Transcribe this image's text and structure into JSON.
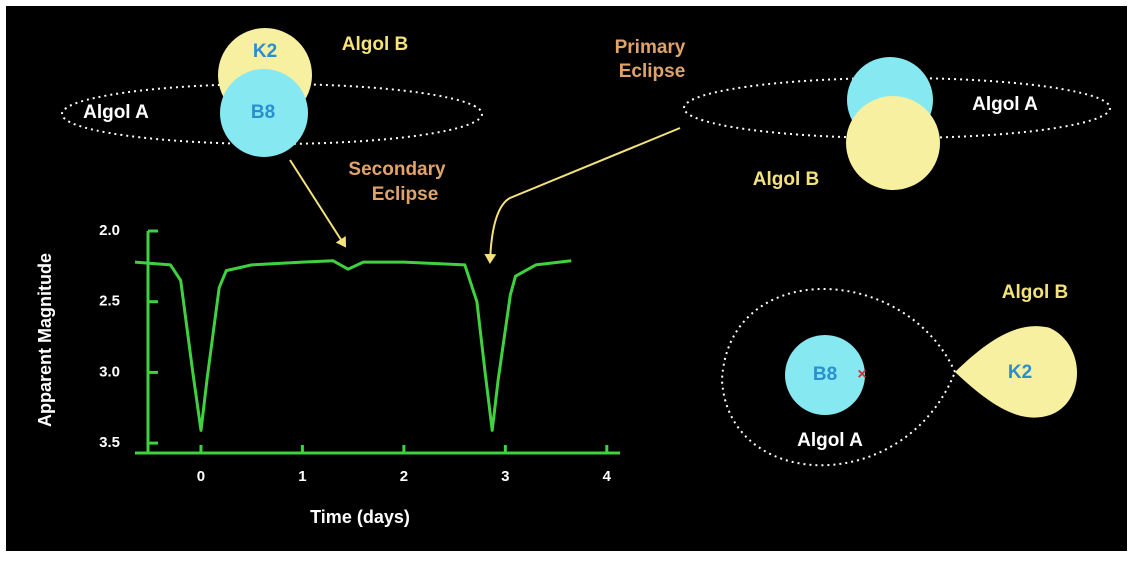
{
  "chart_data": {
    "type": "line",
    "y_label": "Apparent Magnitude",
    "x_label": "Time (days)",
    "color": "#3fd13f",
    "x": [
      -0.65,
      -0.3,
      -0.2,
      -0.08,
      0,
      0.06,
      0.18,
      0.25,
      0.5,
      1.0,
      1.3,
      1.45,
      1.6,
      2.0,
      2.6,
      2.72,
      2.8,
      2.87,
      2.93,
      3.05,
      3.1,
      3.3,
      3.65
    ],
    "values": [
      2.22,
      2.24,
      2.35,
      3.0,
      3.41,
      3.05,
      2.4,
      2.28,
      2.24,
      2.22,
      2.21,
      2.27,
      2.22,
      2.22,
      2.24,
      2.5,
      3.0,
      3.41,
      3.05,
      2.45,
      2.32,
      2.24,
      2.21
    ],
    "xlim": [
      -0.65,
      4.13
    ],
    "ylim": [
      3.57,
      2.0
    ],
    "xticks": [
      0,
      1,
      2,
      3,
      4
    ],
    "yticks": [
      {
        "value": 2,
        "label": "2.0"
      },
      2.5,
      {
        "value": 3,
        "label": "3.0"
      },
      3.5
    ],
    "annotations": [
      [
        "Secondary",
        "Eclipse"
      ],
      [
        "Primary",
        "Eclipse"
      ]
    ]
  },
  "diagrams": [
    {
      "labels": [
        "K2",
        "Algol B",
        "Algol A",
        "B8"
      ]
    },
    {
      "labels": [
        "Algol A",
        "Algol B"
      ]
    },
    {
      "labels": [
        "Algol B",
        "B8",
        "K2",
        "Algol A"
      ]
    }
  ]
}
